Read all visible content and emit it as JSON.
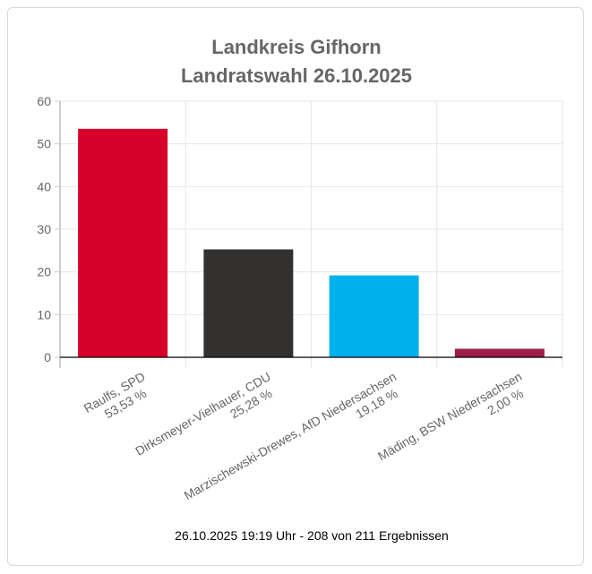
{
  "chart_data": {
    "type": "bar",
    "title": [
      "Landkreis Gifhorn",
      "Landratswahl 26.10.2025"
    ],
    "categories": [
      {
        "name": "Raulfs, SPD",
        "percent": "53,53 %"
      },
      {
        "name": "Dirksmeyer-Vielhauer, CDU",
        "percent": "25,28 %"
      },
      {
        "name": "Marzischewski-Drewes, AfD Niedersachsen",
        "percent": "19,18 %"
      },
      {
        "name": "Mäding, BSW Niedersachsen",
        "percent": "2,00 %"
      }
    ],
    "values": [
      53.53,
      25.28,
      19.18,
      2.0
    ],
    "colors": [
      "#d6002a",
      "#323130",
      "#00b0ed",
      "#9c1d4a"
    ],
    "ylim": [
      0,
      60
    ],
    "yticks": [
      "0",
      "10",
      "20",
      "30",
      "40",
      "50",
      "60"
    ],
    "grid": true
  },
  "footer": "26.10.2025 19:19 Uhr - 208 von 211 Ergebnissen"
}
